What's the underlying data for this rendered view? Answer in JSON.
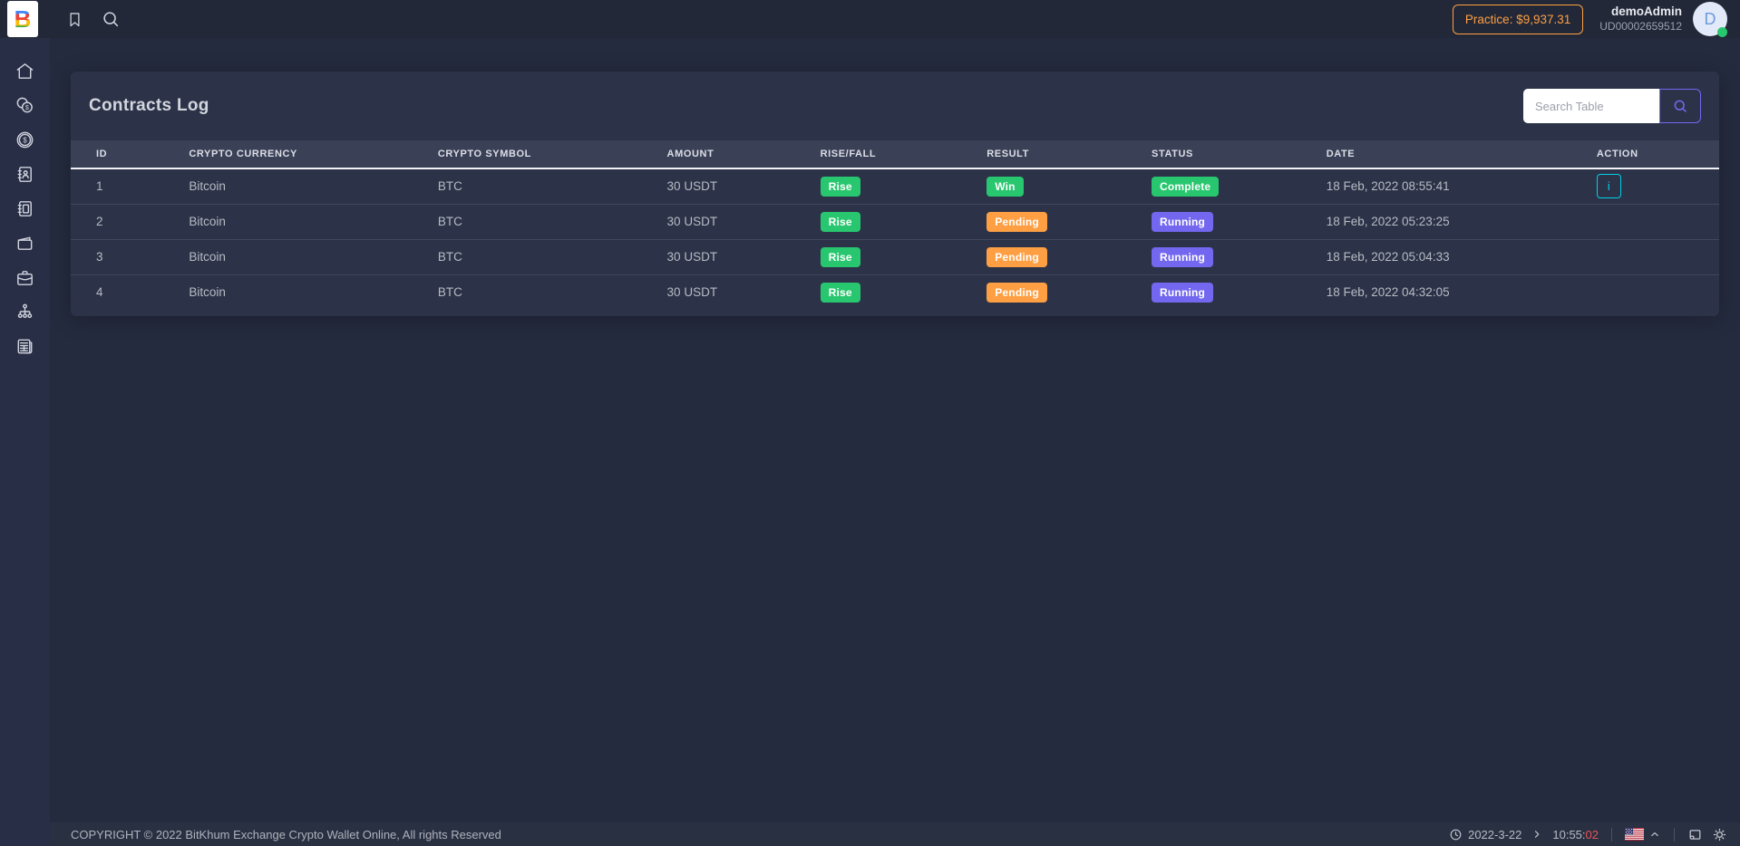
{
  "colors": {
    "success_green": "#28c76f",
    "warning_orange": "#ff9f43",
    "accent_purple": "#7367f0",
    "info_cyan": "#00cfe8",
    "danger_red": "#ea5455"
  },
  "topbar": {
    "logo_letter": "B",
    "practice_balance_label": "Practice: $9,937.31",
    "username": "demoAdmin",
    "user_id": "UD00002659512",
    "avatar_letter": "D"
  },
  "sidebar": {
    "items": [
      {
        "icon": "home-icon"
      },
      {
        "icon": "coins-icon"
      },
      {
        "icon": "coin-dollar-icon"
      },
      {
        "icon": "address-book-icon"
      },
      {
        "icon": "notebook-icon"
      },
      {
        "icon": "wallet-icon"
      },
      {
        "icon": "briefcase-icon"
      },
      {
        "icon": "sitemap-icon"
      },
      {
        "icon": "ledger-icon"
      }
    ]
  },
  "page": {
    "title": "Contracts Log",
    "search_placeholder": "Search Table"
  },
  "table": {
    "headers": [
      "ID",
      "CRYPTO CURRENCY",
      "CRYPTO SYMBOL",
      "AMOUNT",
      "RISE/FALL",
      "RESULT",
      "STATUS",
      "DATE",
      "ACTION"
    ],
    "badge_colors": {
      "Rise": "#28c76f",
      "Win": "#28c76f",
      "Complete": "#28c76f",
      "Pending": "#ff9f43",
      "Running": "#7367f0"
    },
    "rows": [
      {
        "id": "1",
        "currency": "Bitcoin",
        "symbol": "BTC",
        "amount": "30 USDT",
        "rise_fall": "Rise",
        "result": "Win",
        "status": "Complete",
        "date": "18 Feb, 2022 08:55:41",
        "action": "info"
      },
      {
        "id": "2",
        "currency": "Bitcoin",
        "symbol": "BTC",
        "amount": "30 USDT",
        "rise_fall": "Rise",
        "result": "Pending",
        "status": "Running",
        "date": "18 Feb, 2022 05:23:25",
        "action": null
      },
      {
        "id": "3",
        "currency": "Bitcoin",
        "symbol": "BTC",
        "amount": "30 USDT",
        "rise_fall": "Rise",
        "result": "Pending",
        "status": "Running",
        "date": "18 Feb, 2022 05:04:33",
        "action": null
      },
      {
        "id": "4",
        "currency": "Bitcoin",
        "symbol": "BTC",
        "amount": "30 USDT",
        "rise_fall": "Rise",
        "result": "Pending",
        "status": "Running",
        "date": "18 Feb, 2022 04:32:05",
        "action": null
      }
    ]
  },
  "footer": {
    "copyright": "COPYRIGHT © 2022 BitKhum Exchange Crypto Wallet Online, All rights Reserved",
    "date": "2022-3-22",
    "time": "10:55:",
    "seconds": "02"
  }
}
